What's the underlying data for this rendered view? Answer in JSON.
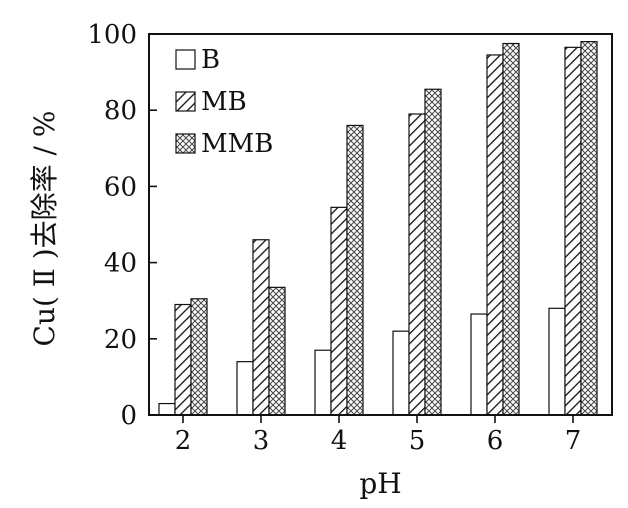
{
  "chart_data": {
    "type": "bar",
    "xlabel": "pH",
    "ylabel": "Cu( Ⅱ )去除率 / %",
    "categories": [
      "2",
      "3",
      "4",
      "5",
      "6",
      "7"
    ],
    "series": [
      {
        "name": "B",
        "values": [
          3,
          14,
          17,
          22,
          26.5,
          28
        ],
        "pattern": "none"
      },
      {
        "name": "MB",
        "values": [
          29,
          46,
          54.5,
          79,
          94.5,
          96.5
        ],
        "pattern": "diagonal-hatch"
      },
      {
        "name": "MMB",
        "values": [
          30.5,
          33.5,
          76,
          85.5,
          97.5,
          98
        ],
        "pattern": "crosshatch"
      }
    ],
    "ylim": [
      0,
      100
    ],
    "yticks": [
      "0",
      "20",
      "40",
      "60",
      "80",
      "100"
    ],
    "legend_position": "top-left",
    "grid": false,
    "colors": {
      "stroke": "#111111",
      "fill": "#ffffff"
    }
  }
}
